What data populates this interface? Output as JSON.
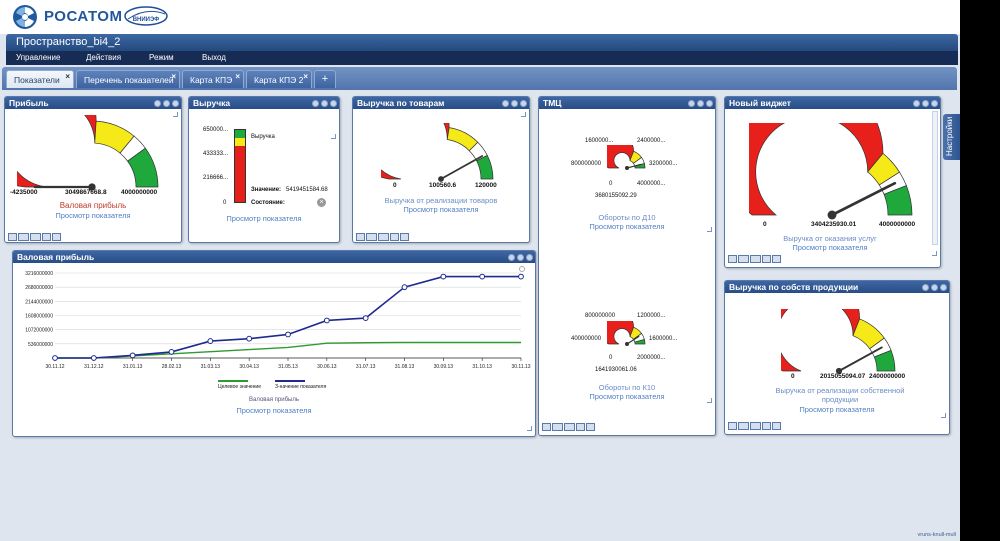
{
  "header": {
    "brand": "РОСАТОМ",
    "partner_logo_text": "ВНИИЭФ",
    "space_title": "Пространство_bi4_2"
  },
  "menu": [
    "Управление",
    "Действия",
    "Режим",
    "Выход"
  ],
  "tabs": [
    {
      "label": "Показатели",
      "active": true
    },
    {
      "label": "Перечень показателей",
      "active": false
    },
    {
      "label": "Карта КПЭ",
      "active": false
    },
    {
      "label": "Карта КПЭ 2",
      "active": false
    }
  ],
  "tab_add": "+",
  "settings_label": "Настройки",
  "footer_text": "vruns-knull-mull",
  "view_link": "Просмотр показателя",
  "widgets": {
    "pribyl": {
      "title": "Прибыль",
      "min": "-4235000",
      "value": "3049867668.8",
      "max": "4000000000",
      "caption": "Валовая прибыль"
    },
    "vyruchka": {
      "title": "Выручка",
      "axis": [
        "650000...",
        "433333...",
        "216666...",
        "0"
      ],
      "legend": "Выручка",
      "value_label": "Значение:",
      "value": "5419451584.68",
      "state_label": "Состояние:"
    },
    "vyruchka_tovary": {
      "title": "Выручка по товарам",
      "min": "0",
      "value": "100560.6",
      "max": "120000",
      "caption": "Выручка от реализации товаров"
    },
    "tmc": {
      "title": "ТМЦ",
      "gauge1": {
        "ticks": [
          "1600000...",
          "2400000...",
          "800000000",
          "3200000...",
          "0",
          "4000000..."
        ],
        "value": "3680155092.29",
        "caption": "Обороты по Д10"
      },
      "gauge2": {
        "ticks": [
          "800000000",
          "1200000...",
          "400000000",
          "1600000...",
          "0",
          "2000000..."
        ],
        "value": "1641930061.06",
        "caption": "Обороты по К10"
      }
    },
    "new_widget": {
      "title": "Новый виджет",
      "min": "0",
      "value": "3404235930.01",
      "max": "4000000000",
      "caption": "Выручка от оказания услуг"
    },
    "production": {
      "title": "Выручка по собств продукции",
      "min": "0",
      "value": "2015055094.07",
      "max": "2400000000",
      "caption": "Выручка от реализации собственной продукции"
    },
    "gross_profit": {
      "title": "Валовая прибыль",
      "caption": "Валовая прибыль",
      "legend": [
        "Целевое значение",
        "З-начение показателя"
      ]
    }
  },
  "chart_data": {
    "type": "line",
    "ytick_labels": [
      "3216000000",
      "2680000000",
      "2144000000",
      "1608000000",
      "1072000000",
      "536000000"
    ],
    "yticks": [
      3216000000,
      2680000000,
      2144000000,
      1608000000,
      1072000000,
      536000000
    ],
    "ylim": [
      0,
      3216000000
    ],
    "categories": [
      "30.11.12",
      "31.12.12",
      "31.01.13",
      "28.02.13",
      "31.03.13",
      "30.04.13",
      "31.05.13",
      "30.06.13",
      "31.07.13",
      "31.08.13",
      "30.09.13",
      "31.10.13",
      "30.11.13"
    ],
    "series": [
      {
        "name": "Целевое значение",
        "color": "#2e9b2e",
        "values": [
          0,
          0,
          80000000,
          160000000,
          240000000,
          320000000,
          400000000,
          560000000,
          580000000,
          590000000,
          590000000,
          590000000,
          590000000
        ]
      },
      {
        "name": "З-начение показателя",
        "color": "#1e2a8f",
        "values": [
          0,
          0,
          100000000,
          230000000,
          640000000,
          730000000,
          890000000,
          1420000000,
          1510000000,
          2680000000,
          3080000000,
          3080000000,
          3080000000
        ]
      }
    ],
    "grid": true,
    "legend_position": "bottom"
  },
  "colors": {
    "red": "#e8201c",
    "yellow": "#f5ea17",
    "green": "#1fa83c",
    "header_blue": "#2b5089"
  }
}
